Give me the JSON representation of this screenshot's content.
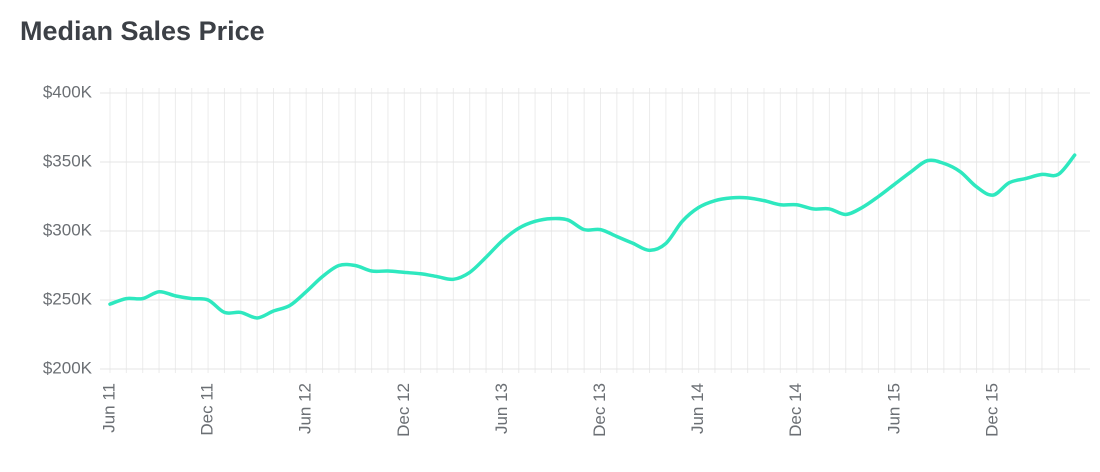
{
  "chart_data": {
    "type": "line",
    "title": "Median Sales Price",
    "categories": [
      "Jun 11",
      null,
      null,
      null,
      null,
      null,
      "Dec 11",
      null,
      null,
      null,
      null,
      null,
      "Jun 12",
      null,
      null,
      null,
      null,
      null,
      "Dec 12",
      null,
      null,
      null,
      null,
      null,
      "Jun 13",
      null,
      null,
      null,
      null,
      null,
      "Dec 13",
      null,
      null,
      null,
      null,
      null,
      "Jun 14",
      null,
      null,
      null,
      null,
      null,
      "Dec 14",
      null,
      null,
      null,
      null,
      null,
      "Jun 15",
      null,
      null,
      null,
      null,
      null,
      "Dec 15",
      null,
      null,
      null,
      null,
      null
    ],
    "series": [
      {
        "color": "#2ee8bf",
        "values": [
          247000,
          251000,
          251000,
          256000,
          253000,
          251000,
          250000,
          241000,
          241000,
          237000,
          242000,
          246000,
          256000,
          267000,
          275000,
          275000,
          271000,
          271000,
          270000,
          269000,
          267000,
          265000,
          270000,
          281000,
          293000,
          302000,
          307000,
          309000,
          308000,
          301000,
          301000,
          296000,
          291000,
          286000,
          291000,
          307000,
          317000,
          322000,
          324000,
          324000,
          322000,
          319000,
          319000,
          316000,
          316000,
          312000,
          317000,
          325000,
          334000,
          343000,
          351000,
          349000,
          343000,
          332000,
          326000,
          335000,
          338000,
          341000,
          341000,
          355000
        ]
      }
    ],
    "ylim": [
      200000,
      400000
    ],
    "yticks": [
      {
        "value": 200000,
        "label": "$200K"
      },
      {
        "value": 250000,
        "label": "$250K"
      },
      {
        "value": 300000,
        "label": "$300K"
      },
      {
        "value": 350000,
        "label": "$350K"
      },
      {
        "value": 400000,
        "label": "$400K"
      }
    ],
    "grid": true
  }
}
